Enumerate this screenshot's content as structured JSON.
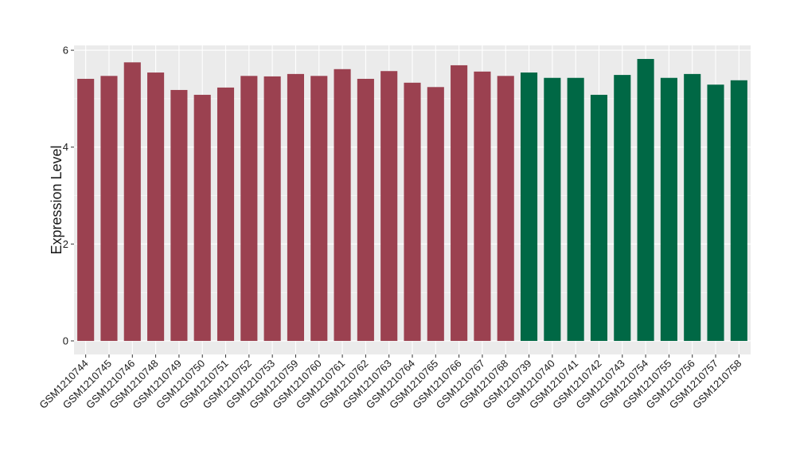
{
  "chart_data": {
    "type": "bar",
    "y_label": "Expression Level",
    "categories": [
      "GSM1210744",
      "GSM1210745",
      "GSM1210746",
      "GSM1210748",
      "GSM1210749",
      "GSM1210750",
      "GSM1210751",
      "GSM1210752",
      "GSM1210753",
      "GSM1210759",
      "GSM1210760",
      "GSM1210761",
      "GSM1210762",
      "GSM1210763",
      "GSM1210764",
      "GSM1210765",
      "GSM1210766",
      "GSM1210767",
      "GSM1210768",
      "GSM1210739",
      "GSM1210740",
      "GSM1210741",
      "GSM1210742",
      "GSM1210743",
      "GSM1210754",
      "GSM1210755",
      "GSM1210756",
      "GSM1210757",
      "GSM1210758"
    ],
    "values": [
      5.41,
      5.47,
      5.75,
      5.54,
      5.18,
      5.08,
      5.23,
      5.47,
      5.46,
      5.51,
      5.47,
      5.61,
      5.41,
      5.57,
      5.33,
      5.24,
      5.69,
      5.56,
      5.47,
      5.54,
      5.43,
      5.43,
      5.08,
      5.49,
      5.82,
      5.43,
      5.51,
      5.29,
      5.38
    ],
    "colors": [
      "#9b4150",
      "#9b4150",
      "#9b4150",
      "#9b4150",
      "#9b4150",
      "#9b4150",
      "#9b4150",
      "#9b4150",
      "#9b4150",
      "#9b4150",
      "#9b4150",
      "#9b4150",
      "#9b4150",
      "#9b4150",
      "#9b4150",
      "#9b4150",
      "#9b4150",
      "#9b4150",
      "#9b4150",
      "#006845",
      "#006845",
      "#006845",
      "#006845",
      "#006845",
      "#006845",
      "#006845",
      "#006845",
      "#006845",
      "#006845"
    ],
    "ylim": [
      -0.28,
      6.1
    ],
    "yticks": [
      0,
      2,
      4,
      6
    ],
    "grid": true
  }
}
